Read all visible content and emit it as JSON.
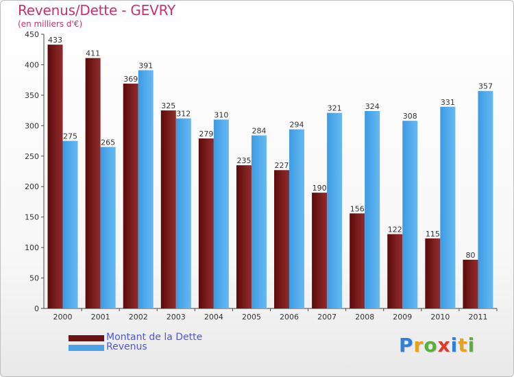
{
  "chart_data": {
    "type": "bar",
    "title": "Revenus/Dette - GEVRY",
    "subtitle": "(en milliers d'€)",
    "xlabel": "",
    "ylabel": "",
    "categories": [
      "2000",
      "2001",
      "2002",
      "2003",
      "2004",
      "2005",
      "2006",
      "2007",
      "2008",
      "2009",
      "2010",
      "2011"
    ],
    "series": [
      {
        "name": "Montant de la Dette",
        "values": [
          433,
          411,
          369,
          325,
          279,
          235,
          227,
          190,
          156,
          122,
          115,
          80
        ],
        "color": "#7a1a1a"
      },
      {
        "name": "Revenus",
        "values": [
          275,
          265,
          391,
          312,
          310,
          284,
          294,
          321,
          324,
          308,
          331,
          357
        ],
        "color": "#4aa3e6"
      }
    ],
    "ylim": [
      0,
      450
    ],
    "yticks": [
      0,
      50,
      100,
      150,
      200,
      250,
      300,
      350,
      400,
      450
    ],
    "grid": false,
    "legend_position": "bottom-left"
  },
  "logo": {
    "letters": [
      "P",
      "r",
      "o",
      "x",
      "i",
      "t",
      "i"
    ],
    "colors": [
      "#2f7fd6",
      "#e8a21a",
      "#57b03a",
      "#e03a2e",
      "#2f7fd6",
      "#e8a21a",
      "#57b03a"
    ]
  }
}
